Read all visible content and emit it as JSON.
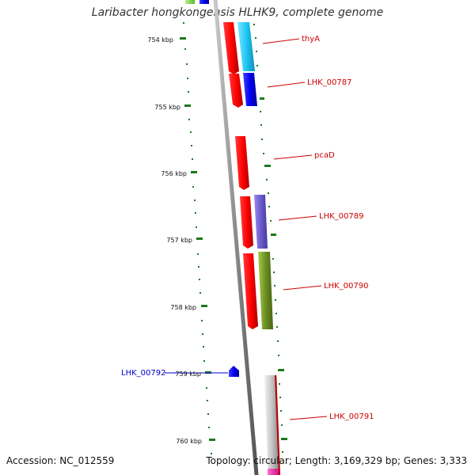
{
  "title": "Laribacter hongkongensis HLHK9, complete genome",
  "footer": {
    "accession": "Accession: NC_012559",
    "summary": "Topology: circular; Length: 3,169,329 bp; Genes: 3,333"
  },
  "colors": {
    "backbone": "#8a8a8a",
    "ticks": "#1a7a1a",
    "forward_label": "#cc0000",
    "reverse_label": "#0000cc"
  },
  "axis_ticks": [
    "754 kbp",
    "755 kbp",
    "756 kbp",
    "757 kbp",
    "758 kbp",
    "759 kbp",
    "760 kbp"
  ],
  "genes": [
    {
      "name": "thyA",
      "strand": "forward",
      "color": "#cc0000"
    },
    {
      "name": "LHK_00787",
      "strand": "forward",
      "color": "#cc0000"
    },
    {
      "name": "pcaD",
      "strand": "forward",
      "color": "#cc0000"
    },
    {
      "name": "LHK_00789",
      "strand": "forward",
      "color": "#cc0000"
    },
    {
      "name": "LHK_00790",
      "strand": "forward",
      "color": "#cc0000"
    },
    {
      "name": "LHK_00791",
      "strand": "forward",
      "color": "#cc0000"
    },
    {
      "name": "LHK_00792",
      "strand": "reverse",
      "color": "#0000cc"
    }
  ]
}
